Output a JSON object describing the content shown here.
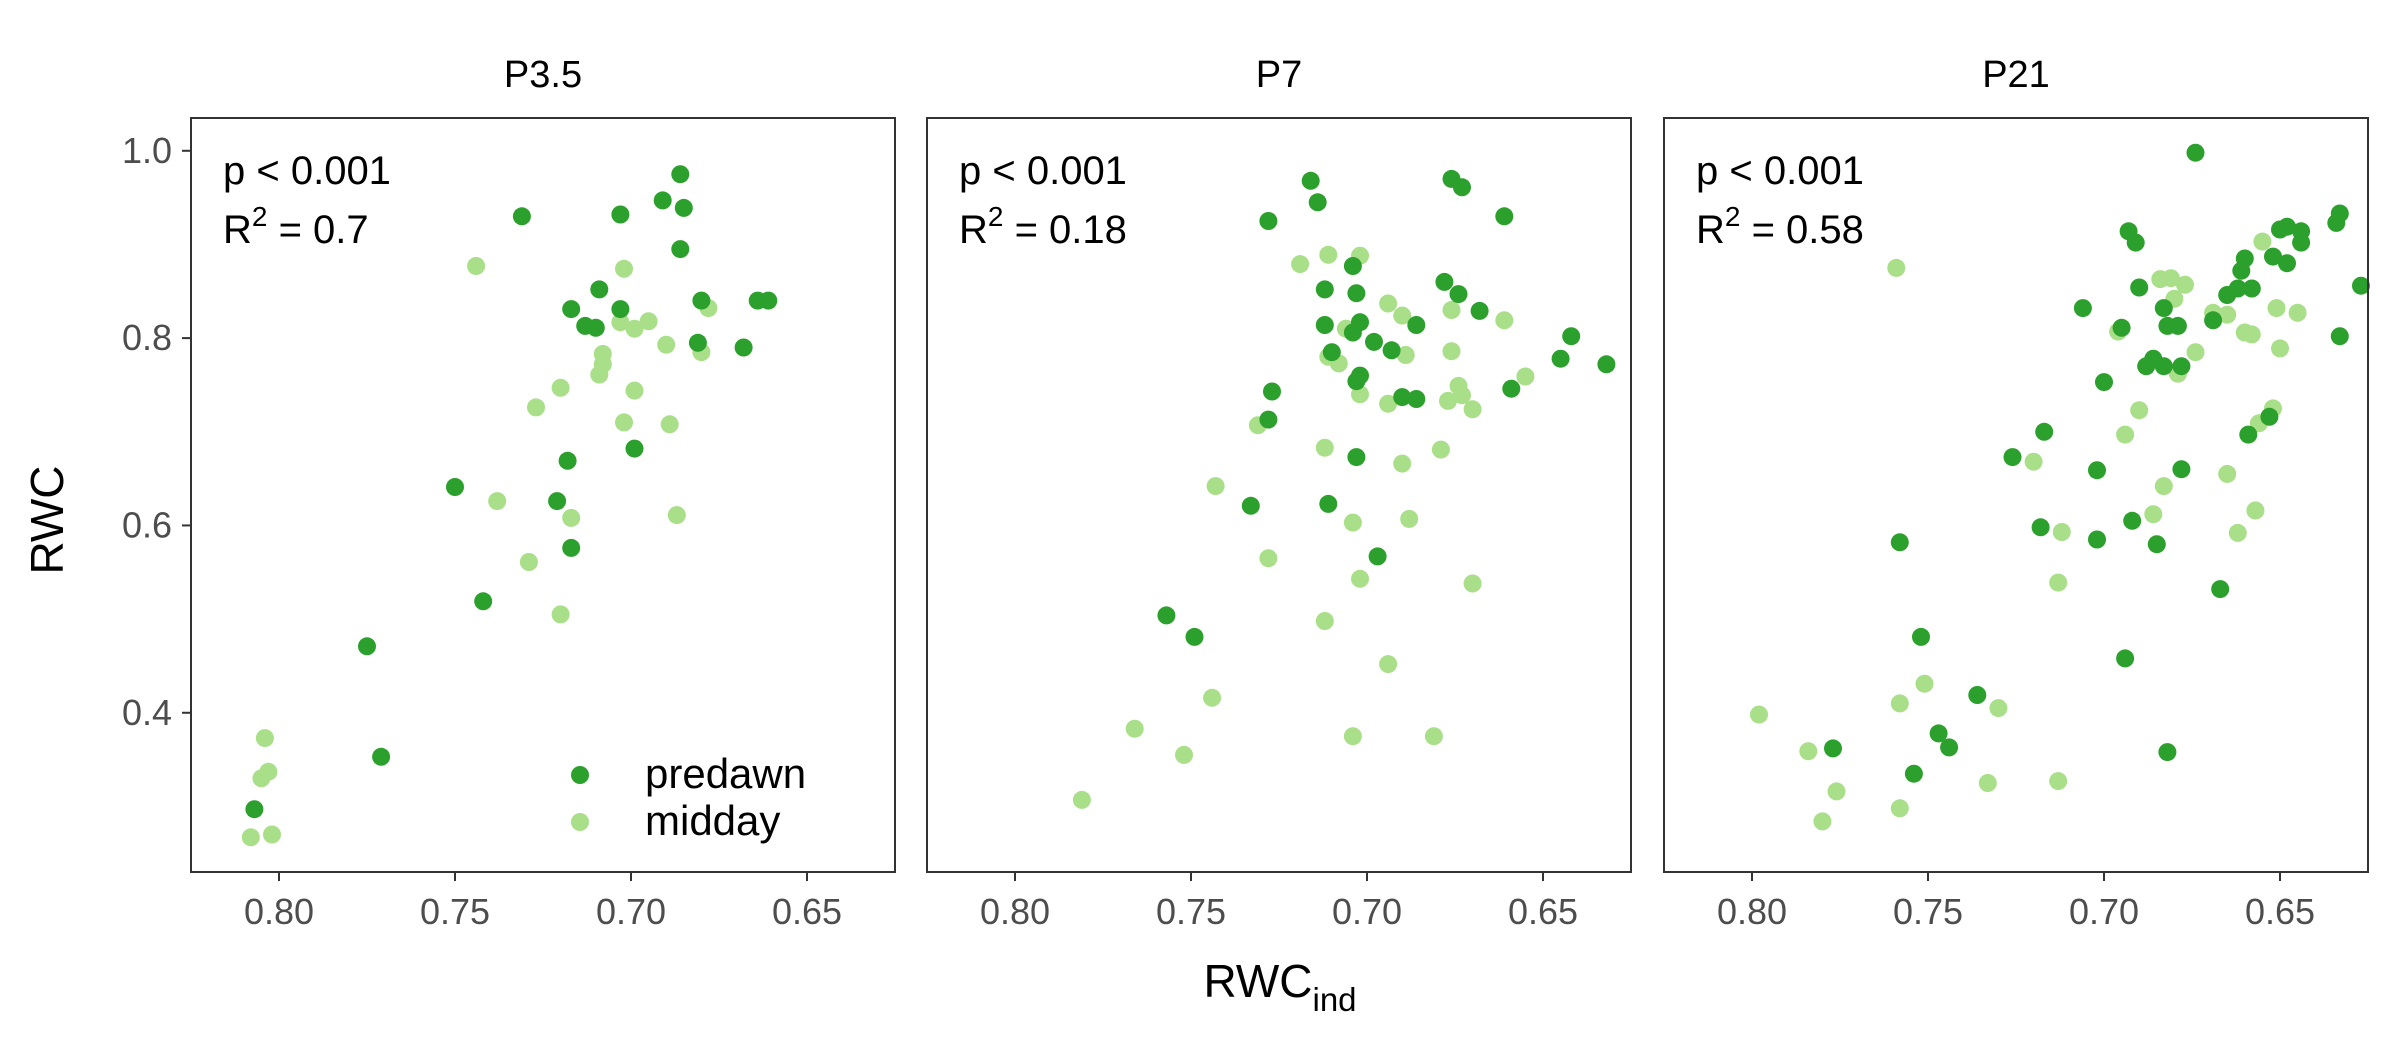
{
  "figure": {
    "ylabel": "RWC",
    "xlabel_main": "RWC",
    "xlabel_sub": "ind",
    "legend": [
      {
        "label": "predawn",
        "color": "#2ca02c"
      },
      {
        "label": "midday",
        "color": "#a8df88"
      }
    ]
  },
  "chart_data": [
    {
      "type": "scatter",
      "title": "P3.5",
      "annotation": {
        "p": "p < 0.001",
        "r2_prefix": "R",
        "r2_sup": "2",
        "r2_value": " = 0.7"
      },
      "xlim": [
        0.825,
        0.625
      ],
      "ylim": [
        0.23,
        1.035
      ],
      "x_reversed": true,
      "xticks": [
        0.8,
        0.75,
        0.7,
        0.65
      ],
      "yticks": [
        0.4,
        0.6,
        0.8,
        1.0
      ],
      "series": [
        {
          "name": "predawn",
          "color": "#2ca02c",
          "points": [
            [
              0.731,
              0.93
            ],
            [
              0.686,
              0.975
            ],
            [
              0.685,
              0.939
            ],
            [
              0.703,
              0.932
            ],
            [
              0.691,
              0.947
            ],
            [
              0.686,
              0.895
            ],
            [
              0.68,
              0.84
            ],
            [
              0.664,
              0.84
            ],
            [
              0.661,
              0.84
            ],
            [
              0.709,
              0.852
            ],
            [
              0.717,
              0.831
            ],
            [
              0.703,
              0.831
            ],
            [
              0.713,
              0.813
            ],
            [
              0.71,
              0.811
            ],
            [
              0.681,
              0.795
            ],
            [
              0.668,
              0.79
            ],
            [
              0.699,
              0.682
            ],
            [
              0.718,
              0.669
            ],
            [
              0.75,
              0.641
            ],
            [
              0.721,
              0.626
            ],
            [
              0.717,
              0.576
            ],
            [
              0.742,
              0.519
            ],
            [
              0.775,
              0.471
            ],
            [
              0.771,
              0.353
            ],
            [
              0.807,
              0.297
            ]
          ]
        },
        {
          "name": "midday",
          "color": "#a8df88",
          "points": [
            [
              0.744,
              0.877
            ],
            [
              0.702,
              0.874
            ],
            [
              0.678,
              0.832
            ],
            [
              0.703,
              0.817
            ],
            [
              0.695,
              0.818
            ],
            [
              0.699,
              0.81
            ],
            [
              0.708,
              0.783
            ],
            [
              0.708,
              0.772
            ],
            [
              0.69,
              0.793
            ],
            [
              0.68,
              0.785
            ],
            [
              0.709,
              0.761
            ],
            [
              0.699,
              0.744
            ],
            [
              0.72,
              0.747
            ],
            [
              0.727,
              0.726
            ],
            [
              0.702,
              0.71
            ],
            [
              0.689,
              0.708
            ],
            [
              0.738,
              0.626
            ],
            [
              0.717,
              0.608
            ],
            [
              0.687,
              0.611
            ],
            [
              0.729,
              0.561
            ],
            [
              0.72,
              0.505
            ],
            [
              0.804,
              0.373
            ],
            [
              0.803,
              0.337
            ],
            [
              0.805,
              0.33
            ],
            [
              0.808,
              0.267
            ],
            [
              0.802,
              0.27
            ]
          ]
        }
      ]
    },
    {
      "type": "scatter",
      "title": "P7",
      "annotation": {
        "p": "p < 0.001",
        "r2_prefix": "R",
        "r2_sup": "2",
        "r2_value": " = 0.18"
      },
      "xlim": [
        0.825,
        0.625
      ],
      "ylim": [
        0.23,
        1.035
      ],
      "x_reversed": true,
      "xticks": [
        0.8,
        0.75,
        0.7,
        0.65
      ],
      "yticks": [
        0.4,
        0.6,
        0.8,
        1.0
      ],
      "series": [
        {
          "name": "predawn",
          "color": "#2ca02c",
          "points": [
            [
              0.716,
              0.968
            ],
            [
              0.676,
              0.97
            ],
            [
              0.673,
              0.961
            ],
            [
              0.714,
              0.945
            ],
            [
              0.728,
              0.925
            ],
            [
              0.661,
              0.93
            ],
            [
              0.704,
              0.877
            ],
            [
              0.678,
              0.86
            ],
            [
              0.712,
              0.852
            ],
            [
              0.703,
              0.848
            ],
            [
              0.674,
              0.847
            ],
            [
              0.668,
              0.829
            ],
            [
              0.702,
              0.817
            ],
            [
              0.686,
              0.814
            ],
            [
              0.712,
              0.814
            ],
            [
              0.642,
              0.802
            ],
            [
              0.704,
              0.806
            ],
            [
              0.698,
              0.796
            ],
            [
              0.71,
              0.785
            ],
            [
              0.693,
              0.787
            ],
            [
              0.645,
              0.778
            ],
            [
              0.632,
              0.772
            ],
            [
              0.702,
              0.76
            ],
            [
              0.703,
              0.754
            ],
            [
              0.659,
              0.746
            ],
            [
              0.727,
              0.743
            ],
            [
              0.69,
              0.737
            ],
            [
              0.686,
              0.735
            ],
            [
              0.728,
              0.713
            ],
            [
              0.703,
              0.673
            ],
            [
              0.711,
              0.623
            ],
            [
              0.733,
              0.621
            ],
            [
              0.697,
              0.567
            ],
            [
              0.757,
              0.504
            ],
            [
              0.749,
              0.481
            ]
          ]
        },
        {
          "name": "midday",
          "color": "#a8df88",
          "points": [
            [
              0.711,
              0.889
            ],
            [
              0.719,
              0.879
            ],
            [
              0.702,
              0.888
            ],
            [
              0.694,
              0.837
            ],
            [
              0.676,
              0.83
            ],
            [
              0.69,
              0.824
            ],
            [
              0.661,
              0.819
            ],
            [
              0.706,
              0.81
            ],
            [
              0.711,
              0.78
            ],
            [
              0.708,
              0.773
            ],
            [
              0.689,
              0.782
            ],
            [
              0.676,
              0.786
            ],
            [
              0.655,
              0.759
            ],
            [
              0.674,
              0.749
            ],
            [
              0.673,
              0.739
            ],
            [
              0.702,
              0.74
            ],
            [
              0.677,
              0.733
            ],
            [
              0.67,
              0.724
            ],
            [
              0.694,
              0.73
            ],
            [
              0.731,
              0.707
            ],
            [
              0.712,
              0.683
            ],
            [
              0.679,
              0.681
            ],
            [
              0.69,
              0.666
            ],
            [
              0.743,
              0.642
            ],
            [
              0.704,
              0.603
            ],
            [
              0.688,
              0.607
            ],
            [
              0.728,
              0.565
            ],
            [
              0.702,
              0.543
            ],
            [
              0.67,
              0.538
            ],
            [
              0.712,
              0.498
            ],
            [
              0.694,
              0.452
            ],
            [
              0.744,
              0.416
            ],
            [
              0.766,
              0.383
            ],
            [
              0.704,
              0.375
            ],
            [
              0.681,
              0.375
            ],
            [
              0.752,
              0.355
            ],
            [
              0.781,
              0.307
            ]
          ]
        }
      ]
    },
    {
      "type": "scatter",
      "title": "P21",
      "annotation": {
        "p": "p < 0.001",
        "r2_prefix": "R",
        "r2_sup": "2",
        "r2_value": " = 0.58"
      },
      "xlim": [
        0.825,
        0.625
      ],
      "ylim": [
        0.23,
        1.035
      ],
      "x_reversed": true,
      "xticks": [
        0.8,
        0.75,
        0.7,
        0.65
      ],
      "yticks": [
        0.4,
        0.6,
        0.8,
        1.0
      ],
      "series": [
        {
          "name": "predawn",
          "color": "#2ca02c",
          "points": [
            [
              0.674,
              0.998
            ],
            [
              0.633,
              0.933
            ],
            [
              0.634,
              0.923
            ],
            [
              0.648,
              0.919
            ],
            [
              0.65,
              0.916
            ],
            [
              0.644,
              0.914
            ],
            [
              0.693,
              0.914
            ],
            [
              0.691,
              0.902
            ],
            [
              0.644,
              0.902
            ],
            [
              0.66,
              0.885
            ],
            [
              0.648,
              0.88
            ],
            [
              0.652,
              0.887
            ],
            [
              0.627,
              0.856
            ],
            [
              0.661,
              0.872
            ],
            [
              0.665,
              0.846
            ],
            [
              0.658,
              0.853
            ],
            [
              0.662,
              0.853
            ],
            [
              0.69,
              0.854
            ],
            [
              0.683,
              0.832
            ],
            [
              0.706,
              0.832
            ],
            [
              0.669,
              0.819
            ],
            [
              0.633,
              0.802
            ],
            [
              0.695,
              0.811
            ],
            [
              0.682,
              0.813
            ],
            [
              0.679,
              0.813
            ],
            [
              0.686,
              0.778
            ],
            [
              0.688,
              0.77
            ],
            [
              0.683,
              0.77
            ],
            [
              0.678,
              0.77
            ],
            [
              0.7,
              0.753
            ],
            [
              0.717,
              0.7
            ],
            [
              0.659,
              0.697
            ],
            [
              0.653,
              0.716
            ],
            [
              0.678,
              0.66
            ],
            [
              0.702,
              0.659
            ],
            [
              0.726,
              0.673
            ],
            [
              0.718,
              0.598
            ],
            [
              0.702,
              0.585
            ],
            [
              0.692,
              0.605
            ],
            [
              0.685,
              0.58
            ],
            [
              0.758,
              0.582
            ],
            [
              0.667,
              0.532
            ],
            [
              0.694,
              0.458
            ],
            [
              0.752,
              0.481
            ],
            [
              0.736,
              0.419
            ],
            [
              0.747,
              0.378
            ],
            [
              0.744,
              0.363
            ],
            [
              0.777,
              0.362
            ],
            [
              0.682,
              0.358
            ],
            [
              0.754,
              0.335
            ]
          ]
        },
        {
          "name": "midday",
          "color": "#a8df88",
          "points": [
            [
              0.759,
              0.875
            ],
            [
              0.655,
              0.903
            ],
            [
              0.681,
              0.864
            ],
            [
              0.684,
              0.863
            ],
            [
              0.677,
              0.857
            ],
            [
              0.669,
              0.827
            ],
            [
              0.68,
              0.842
            ],
            [
              0.651,
              0.832
            ],
            [
              0.645,
              0.827
            ],
            [
              0.665,
              0.825
            ],
            [
              0.696,
              0.807
            ],
            [
              0.66,
              0.806
            ],
            [
              0.658,
              0.804
            ],
            [
              0.65,
              0.789
            ],
            [
              0.674,
              0.785
            ],
            [
              0.679,
              0.762
            ],
            [
              0.69,
              0.723
            ],
            [
              0.652,
              0.725
            ],
            [
              0.656,
              0.709
            ],
            [
              0.694,
              0.697
            ],
            [
              0.72,
              0.668
            ],
            [
              0.683,
              0.642
            ],
            [
              0.665,
              0.655
            ],
            [
              0.686,
              0.612
            ],
            [
              0.657,
              0.616
            ],
            [
              0.662,
              0.592
            ],
            [
              0.712,
              0.593
            ],
            [
              0.713,
              0.539
            ],
            [
              0.751,
              0.431
            ],
            [
              0.758,
              0.41
            ],
            [
              0.73,
              0.405
            ],
            [
              0.798,
              0.398
            ],
            [
              0.784,
              0.359
            ],
            [
              0.776,
              0.316
            ],
            [
              0.733,
              0.325
            ],
            [
              0.713,
              0.327
            ],
            [
              0.758,
              0.298
            ],
            [
              0.78,
              0.284
            ]
          ]
        }
      ]
    }
  ]
}
